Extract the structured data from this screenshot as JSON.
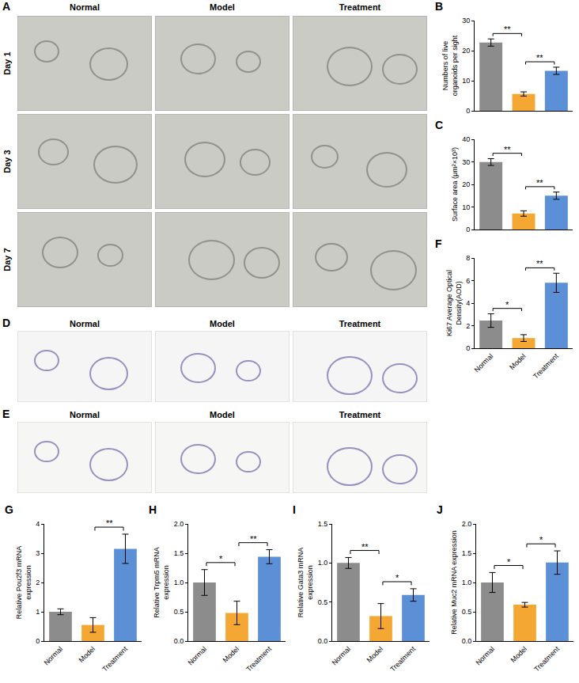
{
  "chart_data": [
    {
      "type": "bar",
      "label": "B",
      "categories": [
        "Normal",
        "Model",
        "Treatment"
      ],
      "values": [
        22.7,
        5.6,
        13.3
      ],
      "errors": [
        1.2,
        0.7,
        1.2
      ],
      "colors": [
        "#8c8c8c",
        "#f4a733",
        "#5b8fd6"
      ],
      "ylabel": "Numbers of live organoids per sight",
      "ylim": [
        0,
        30
      ],
      "yticks": [
        0,
        10,
        20,
        30
      ],
      "tick_labels": "y",
      "significance": [
        {
          "from": "Normal",
          "to": "Model",
          "label": "**"
        },
        {
          "from": "Model",
          "to": "Treatment",
          "label": "**"
        }
      ]
    },
    {
      "type": "bar",
      "label": "C",
      "categories": [
        "Normal",
        "Model",
        "Treatment"
      ],
      "values": [
        29.9,
        7.1,
        15.0
      ],
      "errors": [
        1.5,
        1.2,
        1.6
      ],
      "colors": [
        "#8c8c8c",
        "#f4a733",
        "#5b8fd6"
      ],
      "ylabel": "Surface area (μm²×10³)",
      "ylim": [
        0,
        40
      ],
      "yticks": [
        0,
        10,
        20,
        30,
        40
      ],
      "tick_labels": "y",
      "significance": [
        {
          "from": "Normal",
          "to": "Model",
          "label": "**"
        },
        {
          "from": "Model",
          "to": "Treatment",
          "label": "**"
        }
      ]
    },
    {
      "type": "bar",
      "label": "F",
      "categories": [
        "Normal",
        "Model",
        "Treatment"
      ],
      "values": [
        2.45,
        0.9,
        5.8
      ],
      "errors": [
        0.6,
        0.3,
        0.85
      ],
      "colors": [
        "#8c8c8c",
        "#f4a733",
        "#5b8fd6"
      ],
      "ylabel": "Ki67 Average Optical Density(AOD)",
      "ylim": [
        0,
        8
      ],
      "yticks": [
        0,
        2,
        4,
        6,
        8
      ],
      "significance": [
        {
          "from": "Normal",
          "to": "Model",
          "label": "*"
        },
        {
          "from": "Model",
          "to": "Treatment",
          "label": "**"
        }
      ]
    },
    {
      "type": "bar",
      "label": "G",
      "categories": [
        "Normal",
        "Model",
        "Treatment"
      ],
      "values": [
        1.0,
        0.55,
        3.15
      ],
      "errors": [
        0.1,
        0.25,
        0.5
      ],
      "colors": [
        "#8c8c8c",
        "#f4a733",
        "#5b8fd6"
      ],
      "ylabel": "Relative Pou2f3 mRNA expression",
      "ylim": [
        0,
        4
      ],
      "yticks": [
        0,
        1,
        2,
        3,
        4
      ],
      "significance": [
        {
          "from": "Model",
          "to": "Treatment",
          "label": "**"
        }
      ]
    },
    {
      "type": "bar",
      "label": "H",
      "categories": [
        "Normal",
        "Model",
        "Treatment"
      ],
      "values": [
        1.0,
        0.48,
        1.44
      ],
      "errors": [
        0.22,
        0.2,
        0.12
      ],
      "colors": [
        "#8c8c8c",
        "#f4a733",
        "#5b8fd6"
      ],
      "ylabel": "Relative Trpm5 mRNA expression",
      "ylim": [
        0,
        2
      ],
      "yticks": [
        {
          "value": 0,
          "label": "0.0"
        },
        0.5,
        {
          "value": 1,
          "label": "1.0"
        },
        1.5,
        {
          "value": 2,
          "label": "2.0"
        }
      ],
      "significance": [
        {
          "from": "Normal",
          "to": "Model",
          "label": "*"
        },
        {
          "from": "Model",
          "to": "Treatment",
          "label": "**"
        }
      ]
    },
    {
      "type": "bar",
      "label": "I",
      "categories": [
        "Normal",
        "Model",
        "Treatment"
      ],
      "values": [
        1.0,
        0.32,
        0.59
      ],
      "errors": [
        0.07,
        0.16,
        0.08
      ],
      "colors": [
        "#8c8c8c",
        "#f4a733",
        "#5b8fd6"
      ],
      "ylabel": "Relative Gata3 mRNA expression",
      "ylim": [
        0,
        1.5
      ],
      "yticks": [
        {
          "value": 0,
          "label": "0.0"
        },
        0.5,
        {
          "value": 1,
          "label": "1.0"
        },
        1.5
      ],
      "significance": [
        {
          "from": "Normal",
          "to": "Model",
          "label": "**"
        },
        {
          "from": "Model",
          "to": "Treatment",
          "label": "*"
        }
      ]
    },
    {
      "type": "bar",
      "label": "J",
      "categories": [
        "Normal",
        "Model",
        "Treatment"
      ],
      "values": [
        1.0,
        0.62,
        1.34
      ],
      "errors": [
        0.17,
        0.04,
        0.2
      ],
      "colors": [
        "#8c8c8c",
        "#f4a733",
        "#5b8fd6"
      ],
      "ylabel": "Relative Muc2 mRNA expression",
      "ylim": [
        0,
        2
      ],
      "yticks": [
        {
          "value": 0,
          "label": "0.0"
        },
        0.5,
        {
          "value": 1,
          "label": "1.0"
        },
        1.5,
        {
          "value": 2,
          "label": "2.0"
        }
      ],
      "significance": [
        {
          "from": "Normal",
          "to": "Model",
          "label": "*"
        },
        {
          "from": "Model",
          "to": "Treatment",
          "label": "*"
        }
      ]
    }
  ],
  "image_panels": [
    {
      "label": "A",
      "columns": [
        "Normal",
        "Model",
        "Treatment"
      ],
      "rows": [
        "Day 1",
        "Day 3",
        "Day 7"
      ]
    },
    {
      "label": "D",
      "columns": [
        "Normal",
        "Model",
        "Treatment"
      ]
    },
    {
      "label": "E",
      "columns": [
        "Normal",
        "Model",
        "Treatment"
      ]
    }
  ]
}
